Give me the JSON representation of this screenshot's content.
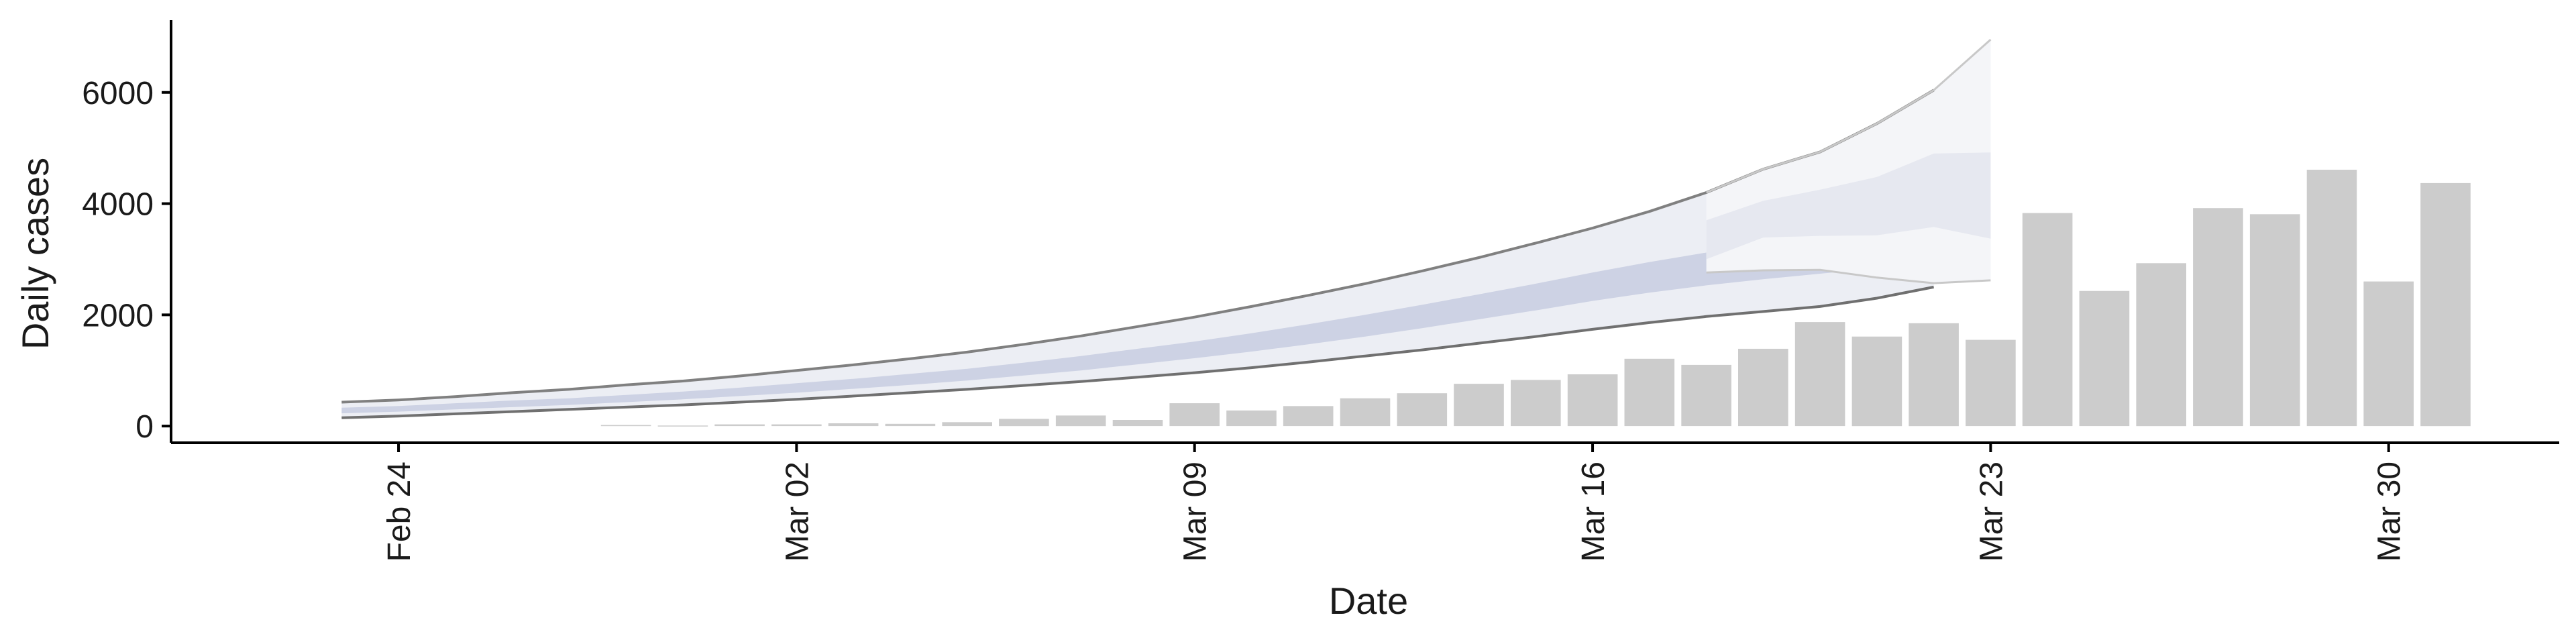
{
  "chart_data": {
    "type": "bar",
    "xlabel": "Date",
    "ylabel": "Daily cases",
    "ylim": [
      -300,
      7300
    ],
    "xlim": [
      "2020-02-20",
      "2020-04-02"
    ],
    "grid": false,
    "legend": "none",
    "x_ticks": [
      {
        "date": "2020-02-24",
        "label": "Feb 24"
      },
      {
        "date": "2020-03-02",
        "label": "Mar 02"
      },
      {
        "date": "2020-03-09",
        "label": "Mar 09"
      },
      {
        "date": "2020-03-16",
        "label": "Mar 16"
      },
      {
        "date": "2020-03-23",
        "label": "Mar 23"
      },
      {
        "date": "2020-03-30",
        "label": "Mar 30"
      }
    ],
    "y_ticks": [
      0,
      2000,
      4000,
      6000
    ],
    "reported_cases": {
      "color": "#cccccc",
      "x": [
        "2020-02-28",
        "2020-02-29",
        "2020-03-01",
        "2020-03-02",
        "2020-03-03",
        "2020-03-04",
        "2020-03-05",
        "2020-03-06",
        "2020-03-07",
        "2020-03-08",
        "2020-03-09",
        "2020-03-10",
        "2020-03-11",
        "2020-03-12",
        "2020-03-13",
        "2020-03-14",
        "2020-03-15",
        "2020-03-16",
        "2020-03-17",
        "2020-03-18",
        "2020-03-19",
        "2020-03-20",
        "2020-03-21",
        "2020-03-22",
        "2020-03-23",
        "2020-03-24",
        "2020-03-25",
        "2020-03-26",
        "2020-03-27",
        "2020-03-28",
        "2020-03-29",
        "2020-03-30",
        "2020-03-31"
      ],
      "values": [
        20,
        10,
        30,
        30,
        50,
        40,
        70,
        130,
        190,
        110,
        410,
        280,
        360,
        500,
        590,
        760,
        830,
        930,
        1210,
        1100,
        1390,
        1870,
        1610,
        1850,
        1550,
        3830,
        2430,
        2930,
        3920,
        3810,
        4610,
        2600,
        4370
      ]
    },
    "estimate": {
      "x": [
        "2020-02-23",
        "2020-02-24",
        "2020-02-25",
        "2020-02-26",
        "2020-02-27",
        "2020-02-28",
        "2020-02-29",
        "2020-03-01",
        "2020-03-02",
        "2020-03-03",
        "2020-03-04",
        "2020-03-05",
        "2020-03-06",
        "2020-03-07",
        "2020-03-08",
        "2020-03-09",
        "2020-03-10",
        "2020-03-11",
        "2020-03-12",
        "2020-03-13",
        "2020-03-14",
        "2020-03-15",
        "2020-03-16",
        "2020-03-17",
        "2020-03-18",
        "2020-03-19",
        "2020-03-20",
        "2020-03-21",
        "2020-03-22"
      ],
      "outer_upper": [
        430,
        470,
        530,
        600,
        660,
        740,
        810,
        900,
        1000,
        1100,
        1210,
        1330,
        1470,
        1620,
        1790,
        1960,
        2150,
        2350,
        2560,
        2790,
        3030,
        3290,
        3560,
        3860,
        4200,
        4620,
        4930,
        5440,
        6040
      ],
      "outer_lower": [
        150,
        180,
        220,
        260,
        300,
        340,
        380,
        430,
        480,
        540,
        600,
        660,
        730,
        800,
        880,
        960,
        1050,
        1150,
        1260,
        1370,
        1490,
        1610,
        1740,
        1860,
        1970,
        2060,
        2150,
        2300,
        2500
      ],
      "inner_upper": [
        330,
        360,
        410,
        460,
        500,
        560,
        620,
        690,
        770,
        850,
        940,
        1030,
        1140,
        1260,
        1390,
        1520,
        1670,
        1830,
        2000,
        2180,
        2370,
        2560,
        2760,
        2950,
        3120,
        3290,
        3500,
        3730,
        4000
      ],
      "inner_lower": [
        230,
        260,
        300,
        340,
        380,
        430,
        480,
        540,
        600,
        670,
        740,
        820,
        910,
        1000,
        1110,
        1220,
        1340,
        1470,
        1610,
        1760,
        1920,
        2080,
        2250,
        2400,
        2530,
        2640,
        2740,
        2840,
        2950
      ],
      "outer_fill": "#eceef4",
      "inner_fill": "#cdd2e4",
      "upper_line_color": "#808080",
      "lower_line_color": "#707070"
    },
    "forecast": {
      "x": [
        "2020-03-18",
        "2020-03-19",
        "2020-03-20",
        "2020-03-21",
        "2020-03-22",
        "2020-03-23"
      ],
      "outer_upper": [
        4200,
        4620,
        4930,
        5440,
        6040,
        6950
      ],
      "outer_lower": [
        2760,
        2800,
        2810,
        2670,
        2570,
        2620
      ],
      "inner_upper": [
        3700,
        4050,
        4250,
        4480,
        4900,
        4920
      ],
      "inner_lower": [
        3000,
        3390,
        3420,
        3430,
        3580,
        3370
      ],
      "outer_fill": "#f4f5f8",
      "inner_fill": "#e6e8f0",
      "line_color": "#c8c8c8"
    }
  }
}
